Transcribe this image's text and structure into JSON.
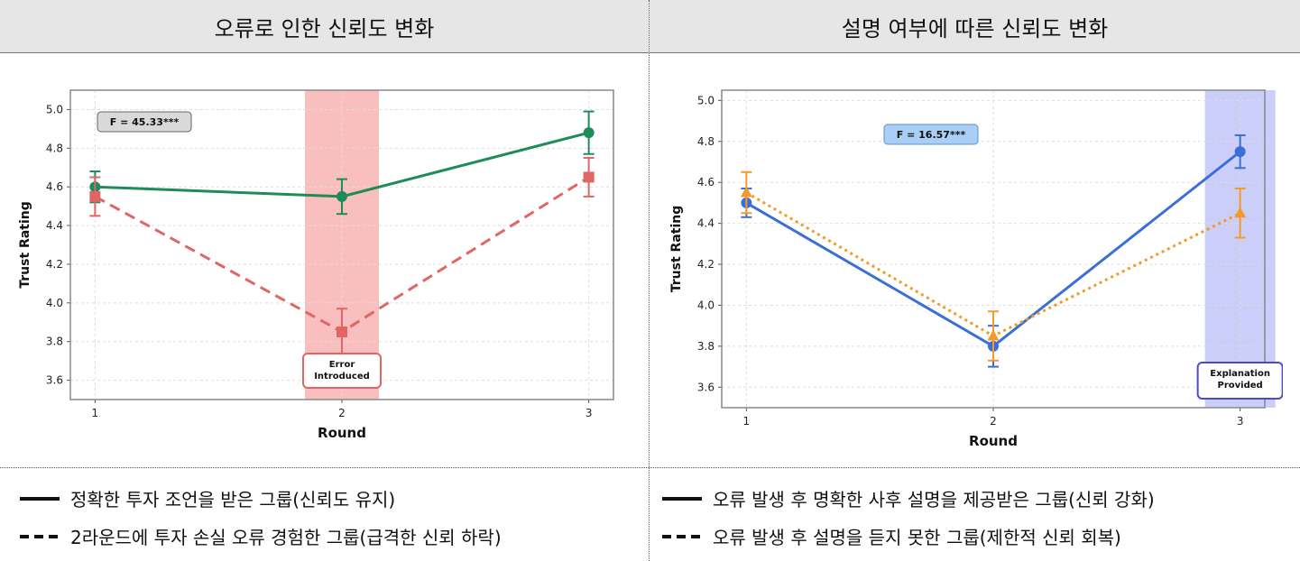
{
  "headers": {
    "left": "오류로 인한 신뢰도 변화",
    "right": "설명 여부에 따른 신뢰도 변화"
  },
  "legend": {
    "left_solid": "정확한 투자 조언을 받은 그룹(신뢰도 유지)",
    "left_dashed": "2라운드에 투자 손실 오류 경험한 그룹(급격한 신뢰 하락)",
    "right_solid": "오류 발생 후 명확한 사후 설명을 제공받은 그룹(신뢰 강화)",
    "right_dashed": "오류 발생 후 설명을 듣지 못한 그룹(제한적 신뢰 회복)"
  },
  "chart_data": [
    {
      "type": "line",
      "xlabel": "Round",
      "ylabel": "Trust Rating",
      "x": [
        1,
        2,
        3
      ],
      "xticks": [
        "1",
        "2",
        "3"
      ],
      "yticks": [
        "3.6",
        "3.8",
        "4.0",
        "4.2",
        "4.4",
        "4.6",
        "4.8",
        "5.0"
      ],
      "ylim": [
        3.5,
        5.1
      ],
      "grid": true,
      "annotation_stat": "F = 45.33***",
      "highlight": {
        "x": 2,
        "label_lines": [
          "Error",
          "Introduced"
        ],
        "color": "#f7a8a8"
      },
      "series": [
        {
          "values": [
            4.6,
            4.55,
            4.88
          ],
          "err": [
            0.08,
            0.09,
            0.11
          ],
          "color": "#1e8c5a",
          "style": "solid",
          "marker": "circle"
        },
        {
          "values": [
            4.55,
            3.85,
            4.65
          ],
          "err": [
            0.1,
            0.12,
            0.1
          ],
          "color": "#e06666",
          "style": "dashed",
          "marker": "square"
        }
      ]
    },
    {
      "type": "line",
      "xlabel": "Round",
      "ylabel": "Trust Rating",
      "x": [
        1,
        2,
        3
      ],
      "xticks": [
        "1",
        "2",
        "3"
      ],
      "yticks": [
        "3.6",
        "3.8",
        "4.0",
        "4.2",
        "4.4",
        "4.6",
        "4.8",
        "5.0"
      ],
      "ylim": [
        3.5,
        5.05
      ],
      "grid": true,
      "annotation_stat": "F = 16.57***",
      "highlight": {
        "x": 3,
        "label_lines": [
          "Explanation",
          "Provided"
        ],
        "color": "#b9bdf5"
      },
      "series": [
        {
          "values": [
            4.5,
            3.8,
            4.75
          ],
          "err": [
            0.07,
            0.1,
            0.08
          ],
          "color": "#3a6fd8",
          "style": "solid",
          "marker": "circle"
        },
        {
          "values": [
            4.55,
            3.85,
            4.45
          ],
          "err": [
            0.1,
            0.12,
            0.12
          ],
          "color": "#f29b2a",
          "style": "dotted",
          "marker": "triangle"
        }
      ]
    }
  ]
}
